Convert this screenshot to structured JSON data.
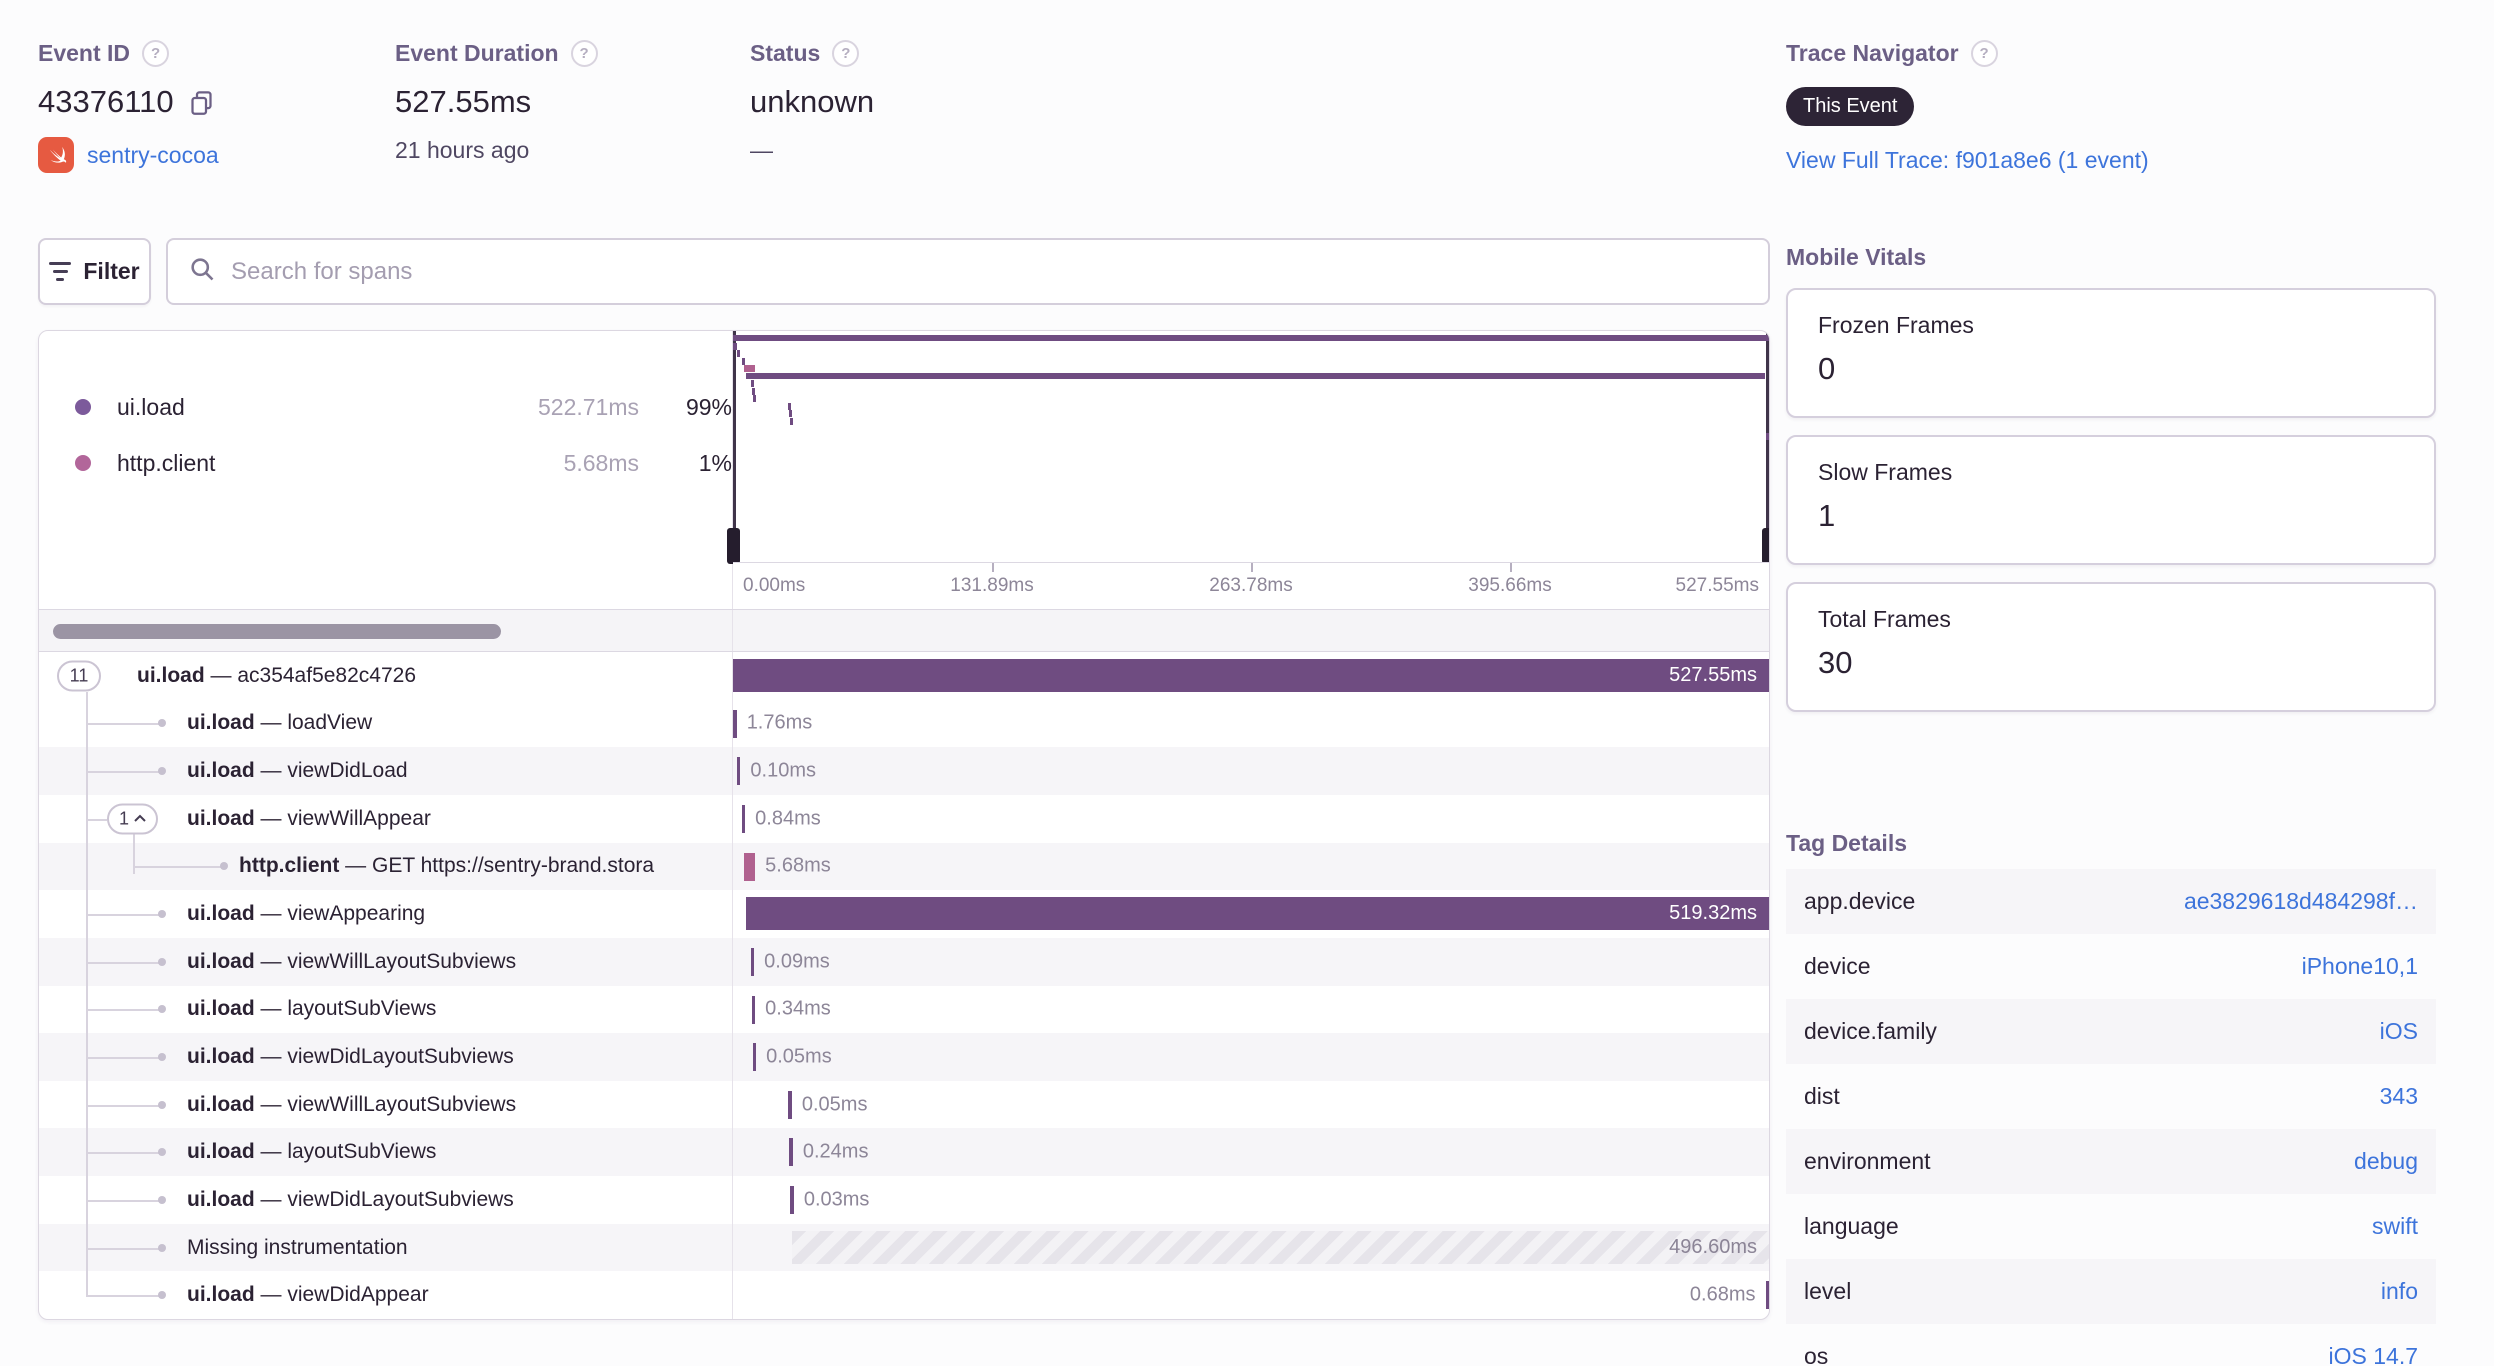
{
  "header": {
    "event_id": {
      "label": "Event ID",
      "value": "43376110",
      "project": "sentry-cocoa"
    },
    "event_duration": {
      "label": "Event Duration",
      "value": "527.55ms",
      "time_ago": "21 hours ago"
    },
    "status": {
      "label": "Status",
      "value": "unknown",
      "placeholder": "—"
    },
    "trace_navigator": {
      "label": "Trace Navigator",
      "badge": "This Event",
      "link": "View Full Trace: f901a8e6 (1 event)"
    }
  },
  "toolbar": {
    "filter_label": "Filter",
    "search_placeholder": "Search for spans"
  },
  "legend": {
    "items": [
      {
        "name": "ui.load",
        "duration": "522.71ms",
        "percent": "99%",
        "color": "#7c5a9b"
      },
      {
        "name": "http.client",
        "duration": "5.68ms",
        "percent": "1%",
        "color": "#b2669a"
      }
    ]
  },
  "timeline": {
    "total_ms": 527.55,
    "axis_ticks": [
      "0.00ms",
      "131.89ms",
      "263.78ms",
      "395.66ms",
      "527.55ms"
    ]
  },
  "spans": [
    {
      "badge": "11",
      "op": "ui.load",
      "separator": "—",
      "name": "ac354af5e82c4726",
      "depth": 0,
      "start_ms": 0,
      "duration_ms": 527.55,
      "duration_label": "527.55ms",
      "kind": "bar",
      "color": "purple",
      "label_position": "inside"
    },
    {
      "op": "ui.load",
      "separator": "—",
      "name": "loadView",
      "depth": 1,
      "start_ms": 0.1,
      "duration_ms": 1.76,
      "duration_label": "1.76ms",
      "kind": "tick",
      "color": "purple",
      "label_position": "right"
    },
    {
      "op": "ui.load",
      "separator": "—",
      "name": "viewDidLoad",
      "depth": 1,
      "start_ms": 2.0,
      "duration_ms": 0.1,
      "duration_label": "0.10ms",
      "kind": "tick",
      "color": "purple",
      "label_position": "right"
    },
    {
      "badge": "1",
      "badge_chevron": "up",
      "op": "ui.load",
      "separator": "—",
      "name": "viewWillAppear",
      "depth": 1,
      "start_ms": 4.4,
      "duration_ms": 0.84,
      "duration_label": "0.84ms",
      "kind": "tick",
      "color": "purple",
      "label_position": "right"
    },
    {
      "op": "http.client",
      "separator": "—",
      "name": "GET https://sentry-brand.stora",
      "depth": 2,
      "start_ms": 5.6,
      "duration_ms": 5.68,
      "duration_label": "5.68ms",
      "kind": "tick",
      "color": "pink",
      "label_position": "right"
    },
    {
      "op": "ui.load",
      "separator": "—",
      "name": "viewAppearing",
      "depth": 1,
      "start_ms": 6.4,
      "duration_ms": 519.32,
      "duration_label": "519.32ms",
      "kind": "bar",
      "color": "purple",
      "label_position": "inside"
    },
    {
      "op": "ui.load",
      "separator": "—",
      "name": "viewWillLayoutSubviews",
      "depth": 1,
      "start_ms": 9.0,
      "duration_ms": 0.09,
      "duration_label": "0.09ms",
      "kind": "tick",
      "color": "purple",
      "label_position": "right"
    },
    {
      "op": "ui.load",
      "separator": "—",
      "name": "layoutSubViews",
      "depth": 1,
      "start_ms": 9.5,
      "duration_ms": 0.34,
      "duration_label": "0.34ms",
      "kind": "tick",
      "color": "purple",
      "label_position": "right"
    },
    {
      "op": "ui.load",
      "separator": "—",
      "name": "viewDidLayoutSubviews",
      "depth": 1,
      "start_ms": 10.0,
      "duration_ms": 0.05,
      "duration_label": "0.05ms",
      "kind": "tick",
      "color": "purple",
      "label_position": "right"
    },
    {
      "op": "ui.load",
      "separator": "—",
      "name": "viewWillLayoutSubviews",
      "depth": 1,
      "start_ms": 28.2,
      "duration_ms": 0.05,
      "duration_label": "0.05ms",
      "kind": "tick",
      "color": "purple",
      "label_position": "right"
    },
    {
      "op": "ui.load",
      "separator": "—",
      "name": "layoutSubViews",
      "depth": 1,
      "start_ms": 28.7,
      "duration_ms": 0.24,
      "duration_label": "0.24ms",
      "kind": "tick",
      "color": "purple",
      "label_position": "right"
    },
    {
      "op": "ui.load",
      "separator": "—",
      "name": "viewDidLayoutSubviews",
      "depth": 1,
      "start_ms": 29.2,
      "duration_ms": 0.03,
      "duration_label": "0.03ms",
      "kind": "tick",
      "color": "purple",
      "label_position": "right"
    },
    {
      "op": "",
      "separator": "",
      "name": "Missing instrumentation",
      "depth": 1,
      "start_ms": 29.8,
      "duration_ms": 496.6,
      "duration_label": "496.60ms",
      "kind": "hatch",
      "color": "hatch",
      "label_position": "inside"
    },
    {
      "op": "ui.load",
      "separator": "—",
      "name": "viewDidAppear",
      "depth": 1,
      "start_ms": 526.8,
      "duration_ms": 0.68,
      "duration_label": "0.68ms",
      "kind": "tick",
      "color": "purple",
      "label_position": "left"
    }
  ],
  "mobile_vitals": {
    "title": "Mobile Vitals",
    "cards": [
      {
        "label": "Frozen Frames",
        "value": "0"
      },
      {
        "label": "Slow Frames",
        "value": "1"
      },
      {
        "label": "Total Frames",
        "value": "30"
      }
    ]
  },
  "tag_details": {
    "title": "Tag Details",
    "rows": [
      {
        "key": "app.device",
        "value": "ae3829618d484298f…"
      },
      {
        "key": "device",
        "value": "iPhone10,1"
      },
      {
        "key": "device.family",
        "value": "iOS"
      },
      {
        "key": "dist",
        "value": "343"
      },
      {
        "key": "environment",
        "value": "debug"
      },
      {
        "key": "language",
        "value": "swift"
      },
      {
        "key": "level",
        "value": "info"
      },
      {
        "key": "os",
        "value": "iOS 14.7"
      }
    ]
  },
  "colors": {
    "span_purple": "#6f4c81",
    "span_pink": "#b0618f",
    "link_blue": "#3d74db",
    "heading_purple": "#6b5f85",
    "stripe_gray": "#f6f5f8"
  }
}
